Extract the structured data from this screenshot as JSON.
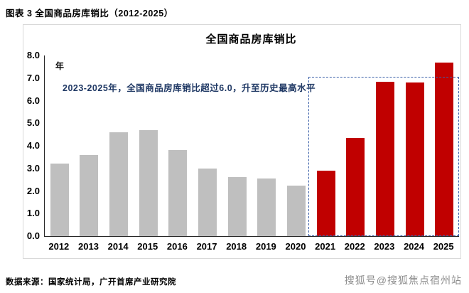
{
  "header": {
    "caption": "图表 3 全国商品房库销比（2012-2025）"
  },
  "chart_data": {
    "type": "bar",
    "title": "全国商品房库销比",
    "y_unit_label": "年",
    "annotation": "2023-2025年，全国商品房库销比超过6.0，升至历史最高水平",
    "categories": [
      "2012",
      "2013",
      "2014",
      "2015",
      "2016",
      "2017",
      "2018",
      "2019",
      "2020",
      "2021",
      "2022",
      "2023",
      "2024",
      "2025"
    ],
    "values": [
      3.2,
      3.6,
      4.6,
      4.7,
      3.8,
      3.0,
      2.6,
      2.55,
      2.25,
      2.9,
      4.35,
      6.85,
      6.8,
      7.7
    ],
    "ylim": [
      0,
      8
    ],
    "yticks": [
      "8.0",
      "7.0",
      "6.0",
      "5.0",
      "4.0",
      "3.0",
      "2.0",
      "1.0",
      "0.0"
    ],
    "grid": false,
    "legend": "none",
    "highlight_start_index": 9,
    "highlight_box": {
      "top_value": 7.05
    },
    "colors": {
      "bar_default": "#BFBFBF",
      "bar_highlight": "#C00000",
      "highlight_box_border": "#3A5FA8",
      "annotation_text": "#1F3864"
    }
  },
  "footer": {
    "source": "数据来源：国家统计局，广开首席产业研究院",
    "watermark": "搜狐号@搜狐焦点宿州站"
  }
}
